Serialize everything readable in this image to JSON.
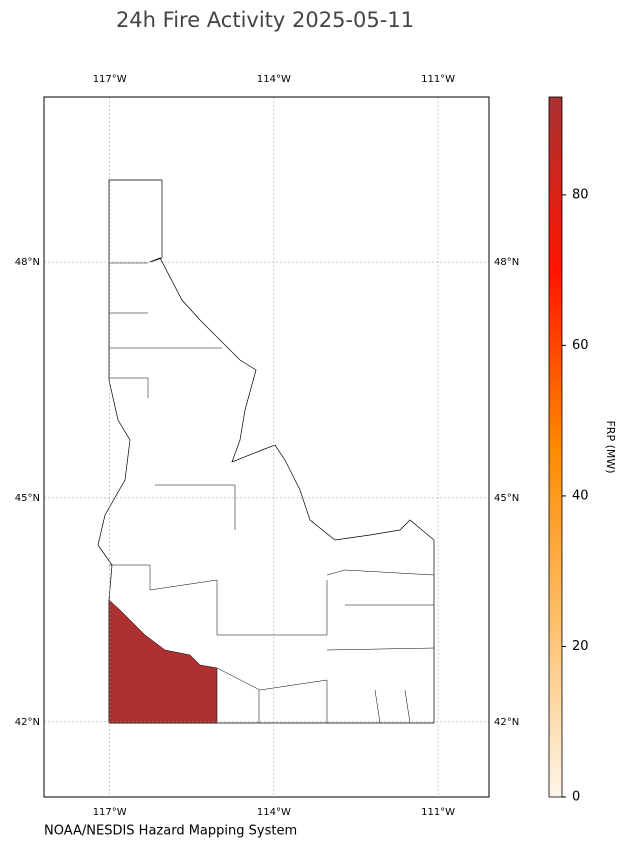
{
  "chart_data": {
    "type": "map",
    "title": "24h Fire Activity 2025-05-11",
    "xlim": [
      -118.2,
      -110.07
    ],
    "ylim": [
      40.96,
      50.0
    ],
    "xticks": [
      {
        "value": -117,
        "label": "117°W"
      },
      {
        "value": -114,
        "label": "114°W"
      },
      {
        "value": -111,
        "label": "111°W"
      }
    ],
    "yticks": [
      {
        "value": 42,
        "label": "42°N"
      },
      {
        "value": 45,
        "label": "45°N"
      },
      {
        "value": 48,
        "label": "48°N"
      }
    ],
    "grid": true,
    "regions": [
      {
        "frp": 92
      }
    ],
    "colorbar": {
      "label": "FRP (MW)",
      "lim": [
        0,
        93
      ],
      "ticks": [
        0,
        20,
        40,
        60,
        80
      ],
      "colors": [
        "#fff5e8",
        "#fdbf6a",
        "#ff8a00",
        "#ff1500",
        "#a83232"
      ]
    },
    "source": "NOAA/NESDIS Hazard Mapping System"
  }
}
